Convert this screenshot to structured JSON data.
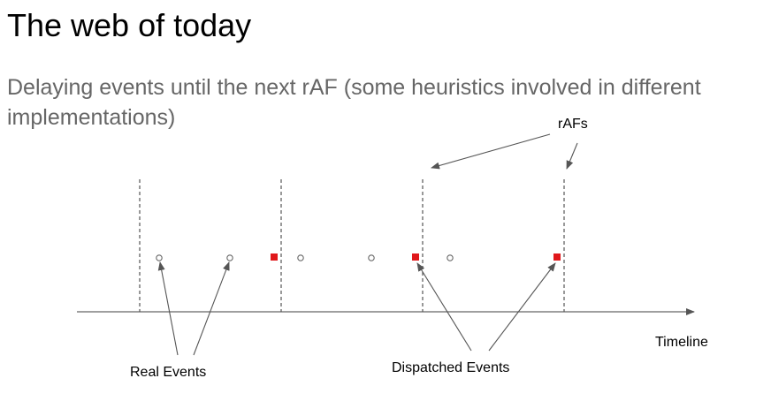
{
  "title": "The web of today",
  "subtitle": "Delaying events until the next rAF (some heuristics involved in different implementations)",
  "diagram": {
    "labels": {
      "rafs": "rAFs",
      "timeline": "Timeline",
      "real_events": "Real Events",
      "dispatched_events": "Dispatched Events"
    },
    "colors": {
      "dispatched": "#e0181b",
      "line": "#555555",
      "event_outline": "#666666"
    }
  }
}
